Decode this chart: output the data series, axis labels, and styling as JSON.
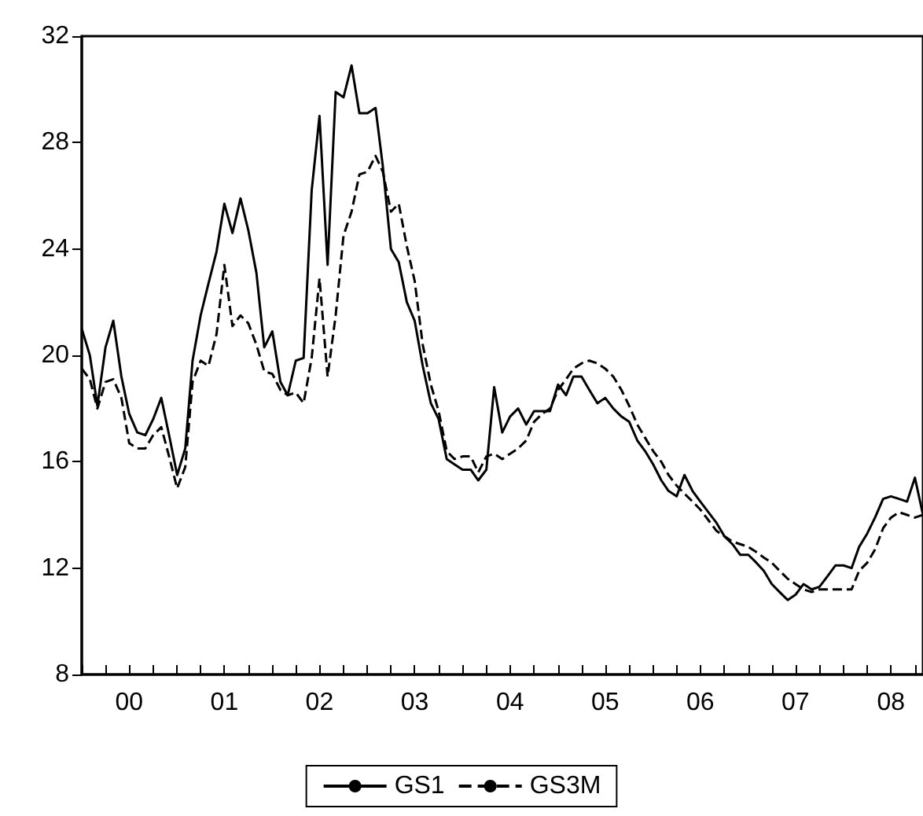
{
  "chart_data": {
    "type": "line",
    "x": [
      "2000-01",
      "2000-02",
      "2000-03",
      "2000-04",
      "2000-05",
      "2000-06",
      "2000-07",
      "2000-08",
      "2000-09",
      "2000-10",
      "2000-11",
      "2000-12",
      "2001-01",
      "2001-02",
      "2001-03",
      "2001-04",
      "2001-05",
      "2001-06",
      "2001-07",
      "2001-08",
      "2001-09",
      "2001-10",
      "2001-11",
      "2001-12",
      "2002-01",
      "2002-02",
      "2002-03",
      "2002-04",
      "2002-05",
      "2002-06",
      "2002-07",
      "2002-08",
      "2002-09",
      "2002-10",
      "2002-11",
      "2002-12",
      "2003-01",
      "2003-02",
      "2003-03",
      "2003-04",
      "2003-05",
      "2003-06",
      "2003-07",
      "2003-08",
      "2003-09",
      "2003-10",
      "2003-11",
      "2003-12",
      "2004-01",
      "2004-02",
      "2004-03",
      "2004-04",
      "2004-05",
      "2004-06",
      "2004-07",
      "2004-08",
      "2004-09",
      "2004-10",
      "2004-11",
      "2004-12",
      "2005-01",
      "2005-02",
      "2005-03",
      "2005-04",
      "2005-05",
      "2005-06",
      "2005-07",
      "2005-08",
      "2005-09",
      "2005-10",
      "2005-11",
      "2005-12",
      "2006-01",
      "2006-02",
      "2006-03",
      "2006-04",
      "2006-05",
      "2006-06",
      "2006-07",
      "2006-08",
      "2006-09",
      "2006-10",
      "2006-11",
      "2006-12",
      "2007-01",
      "2007-02",
      "2007-03",
      "2007-04",
      "2007-05",
      "2007-06",
      "2007-07",
      "2007-08",
      "2007-09",
      "2007-10",
      "2007-11",
      "2007-12",
      "2008-01",
      "2008-02",
      "2008-03",
      "2008-04",
      "2008-05",
      "2008-06",
      "2008-07",
      "2008-08",
      "2008-09",
      "2008-10",
      "2008-11"
    ],
    "series": [
      {
        "name": "GS1",
        "color": "#000000",
        "line_style": "solid",
        "values": [
          21.0,
          20.0,
          18.1,
          20.3,
          21.3,
          19.2,
          17.8,
          17.1,
          17.0,
          17.6,
          18.4,
          17.0,
          15.5,
          16.5,
          19.8,
          21.5,
          22.7,
          23.9,
          25.7,
          24.6,
          25.9,
          24.7,
          23.1,
          20.3,
          20.9,
          19.0,
          18.5,
          19.8,
          19.9,
          26.2,
          29.0,
          23.4,
          29.9,
          29.7,
          30.9,
          29.1,
          29.1,
          29.3,
          27.1,
          24.0,
          23.5,
          22.0,
          21.3,
          19.6,
          18.2,
          17.6,
          16.1,
          15.9,
          15.7,
          15.7,
          15.3,
          15.7,
          18.8,
          17.1,
          17.7,
          18.0,
          17.4,
          17.9,
          17.9,
          17.9,
          18.9,
          18.5,
          19.2,
          19.2,
          18.7,
          18.2,
          18.4,
          18.0,
          17.7,
          17.5,
          16.8,
          16.4,
          15.9,
          15.3,
          14.9,
          14.7,
          15.5,
          14.9,
          14.5,
          14.1,
          13.7,
          13.2,
          12.9,
          12.5,
          12.5,
          12.2,
          11.9,
          11.4,
          11.1,
          10.8,
          11.0,
          11.4,
          11.2,
          11.3,
          11.7,
          12.1,
          12.1,
          12.0,
          12.8,
          13.3,
          13.9,
          14.6,
          14.7,
          14.6,
          14.5,
          15.4,
          14.0
        ]
      },
      {
        "name": "GS3M",
        "color": "#000000",
        "line_style": "dashed",
        "values": [
          19.5,
          19.1,
          18.0,
          19.0,
          19.1,
          18.4,
          16.7,
          16.5,
          16.5,
          17.0,
          17.3,
          16.2,
          15.0,
          15.8,
          19.0,
          19.8,
          19.6,
          20.8,
          23.4,
          21.1,
          21.5,
          21.2,
          20.4,
          19.4,
          19.3,
          18.7,
          18.5,
          18.6,
          18.2,
          19.9,
          22.9,
          19.2,
          21.5,
          24.5,
          25.4,
          26.8,
          26.9,
          27.5,
          26.9,
          25.4,
          25.7,
          24.1,
          22.8,
          20.4,
          18.9,
          17.9,
          16.4,
          16.1,
          16.2,
          16.2,
          15.6,
          16.2,
          16.3,
          16.1,
          16.3,
          16.5,
          16.8,
          17.5,
          17.8,
          18.0,
          18.7,
          19.1,
          19.5,
          19.7,
          19.8,
          19.7,
          19.5,
          19.2,
          18.7,
          18.1,
          17.4,
          16.9,
          16.4,
          16.0,
          15.5,
          15.1,
          14.8,
          14.5,
          14.2,
          13.8,
          13.4,
          13.2,
          13.0,
          12.9,
          12.8,
          12.6,
          12.4,
          12.2,
          11.9,
          11.6,
          11.4,
          11.2,
          11.1,
          11.2,
          11.2,
          11.2,
          11.2,
          11.2,
          11.9,
          12.2,
          12.7,
          13.5,
          13.9,
          14.1,
          14.0,
          13.9,
          14.0
        ]
      }
    ],
    "xlim": [
      "2000-01",
      "2008-11"
    ],
    "xticks": [
      {
        "value": "2000-01",
        "label": null
      },
      {
        "value": "2000-04",
        "label": null
      },
      {
        "value": "2000-07",
        "label": "00"
      },
      {
        "value": "2000-10",
        "label": null
      },
      {
        "value": "2001-01",
        "label": null
      },
      {
        "value": "2001-04",
        "label": null
      },
      {
        "value": "2001-07",
        "label": "01"
      },
      {
        "value": "2001-10",
        "label": null
      },
      {
        "value": "2002-01",
        "label": null
      },
      {
        "value": "2002-04",
        "label": null
      },
      {
        "value": "2002-07",
        "label": "02"
      },
      {
        "value": "2002-10",
        "label": null
      },
      {
        "value": "2003-01",
        "label": null
      },
      {
        "value": "2003-04",
        "label": null
      },
      {
        "value": "2003-07",
        "label": "03"
      },
      {
        "value": "2003-10",
        "label": null
      },
      {
        "value": "2004-01",
        "label": null
      },
      {
        "value": "2004-04",
        "label": null
      },
      {
        "value": "2004-07",
        "label": "04"
      },
      {
        "value": "2004-10",
        "label": null
      },
      {
        "value": "2005-01",
        "label": null
      },
      {
        "value": "2005-04",
        "label": null
      },
      {
        "value": "2005-07",
        "label": "05"
      },
      {
        "value": "2005-10",
        "label": null
      },
      {
        "value": "2006-01",
        "label": null
      },
      {
        "value": "2006-04",
        "label": null
      },
      {
        "value": "2006-07",
        "label": "06"
      },
      {
        "value": "2006-10",
        "label": null
      },
      {
        "value": "2007-01",
        "label": null
      },
      {
        "value": "2007-04",
        "label": null
      },
      {
        "value": "2007-07",
        "label": "07"
      },
      {
        "value": "2007-10",
        "label": null
      },
      {
        "value": "2008-01",
        "label": null
      },
      {
        "value": "2008-04",
        "label": null
      },
      {
        "value": "2008-07",
        "label": "08"
      },
      {
        "value": "2008-10",
        "label": null
      }
    ],
    "ylim": [
      8,
      32
    ],
    "yticks": [
      8,
      12,
      16,
      20,
      24,
      28,
      32
    ],
    "legend": "bottom"
  }
}
